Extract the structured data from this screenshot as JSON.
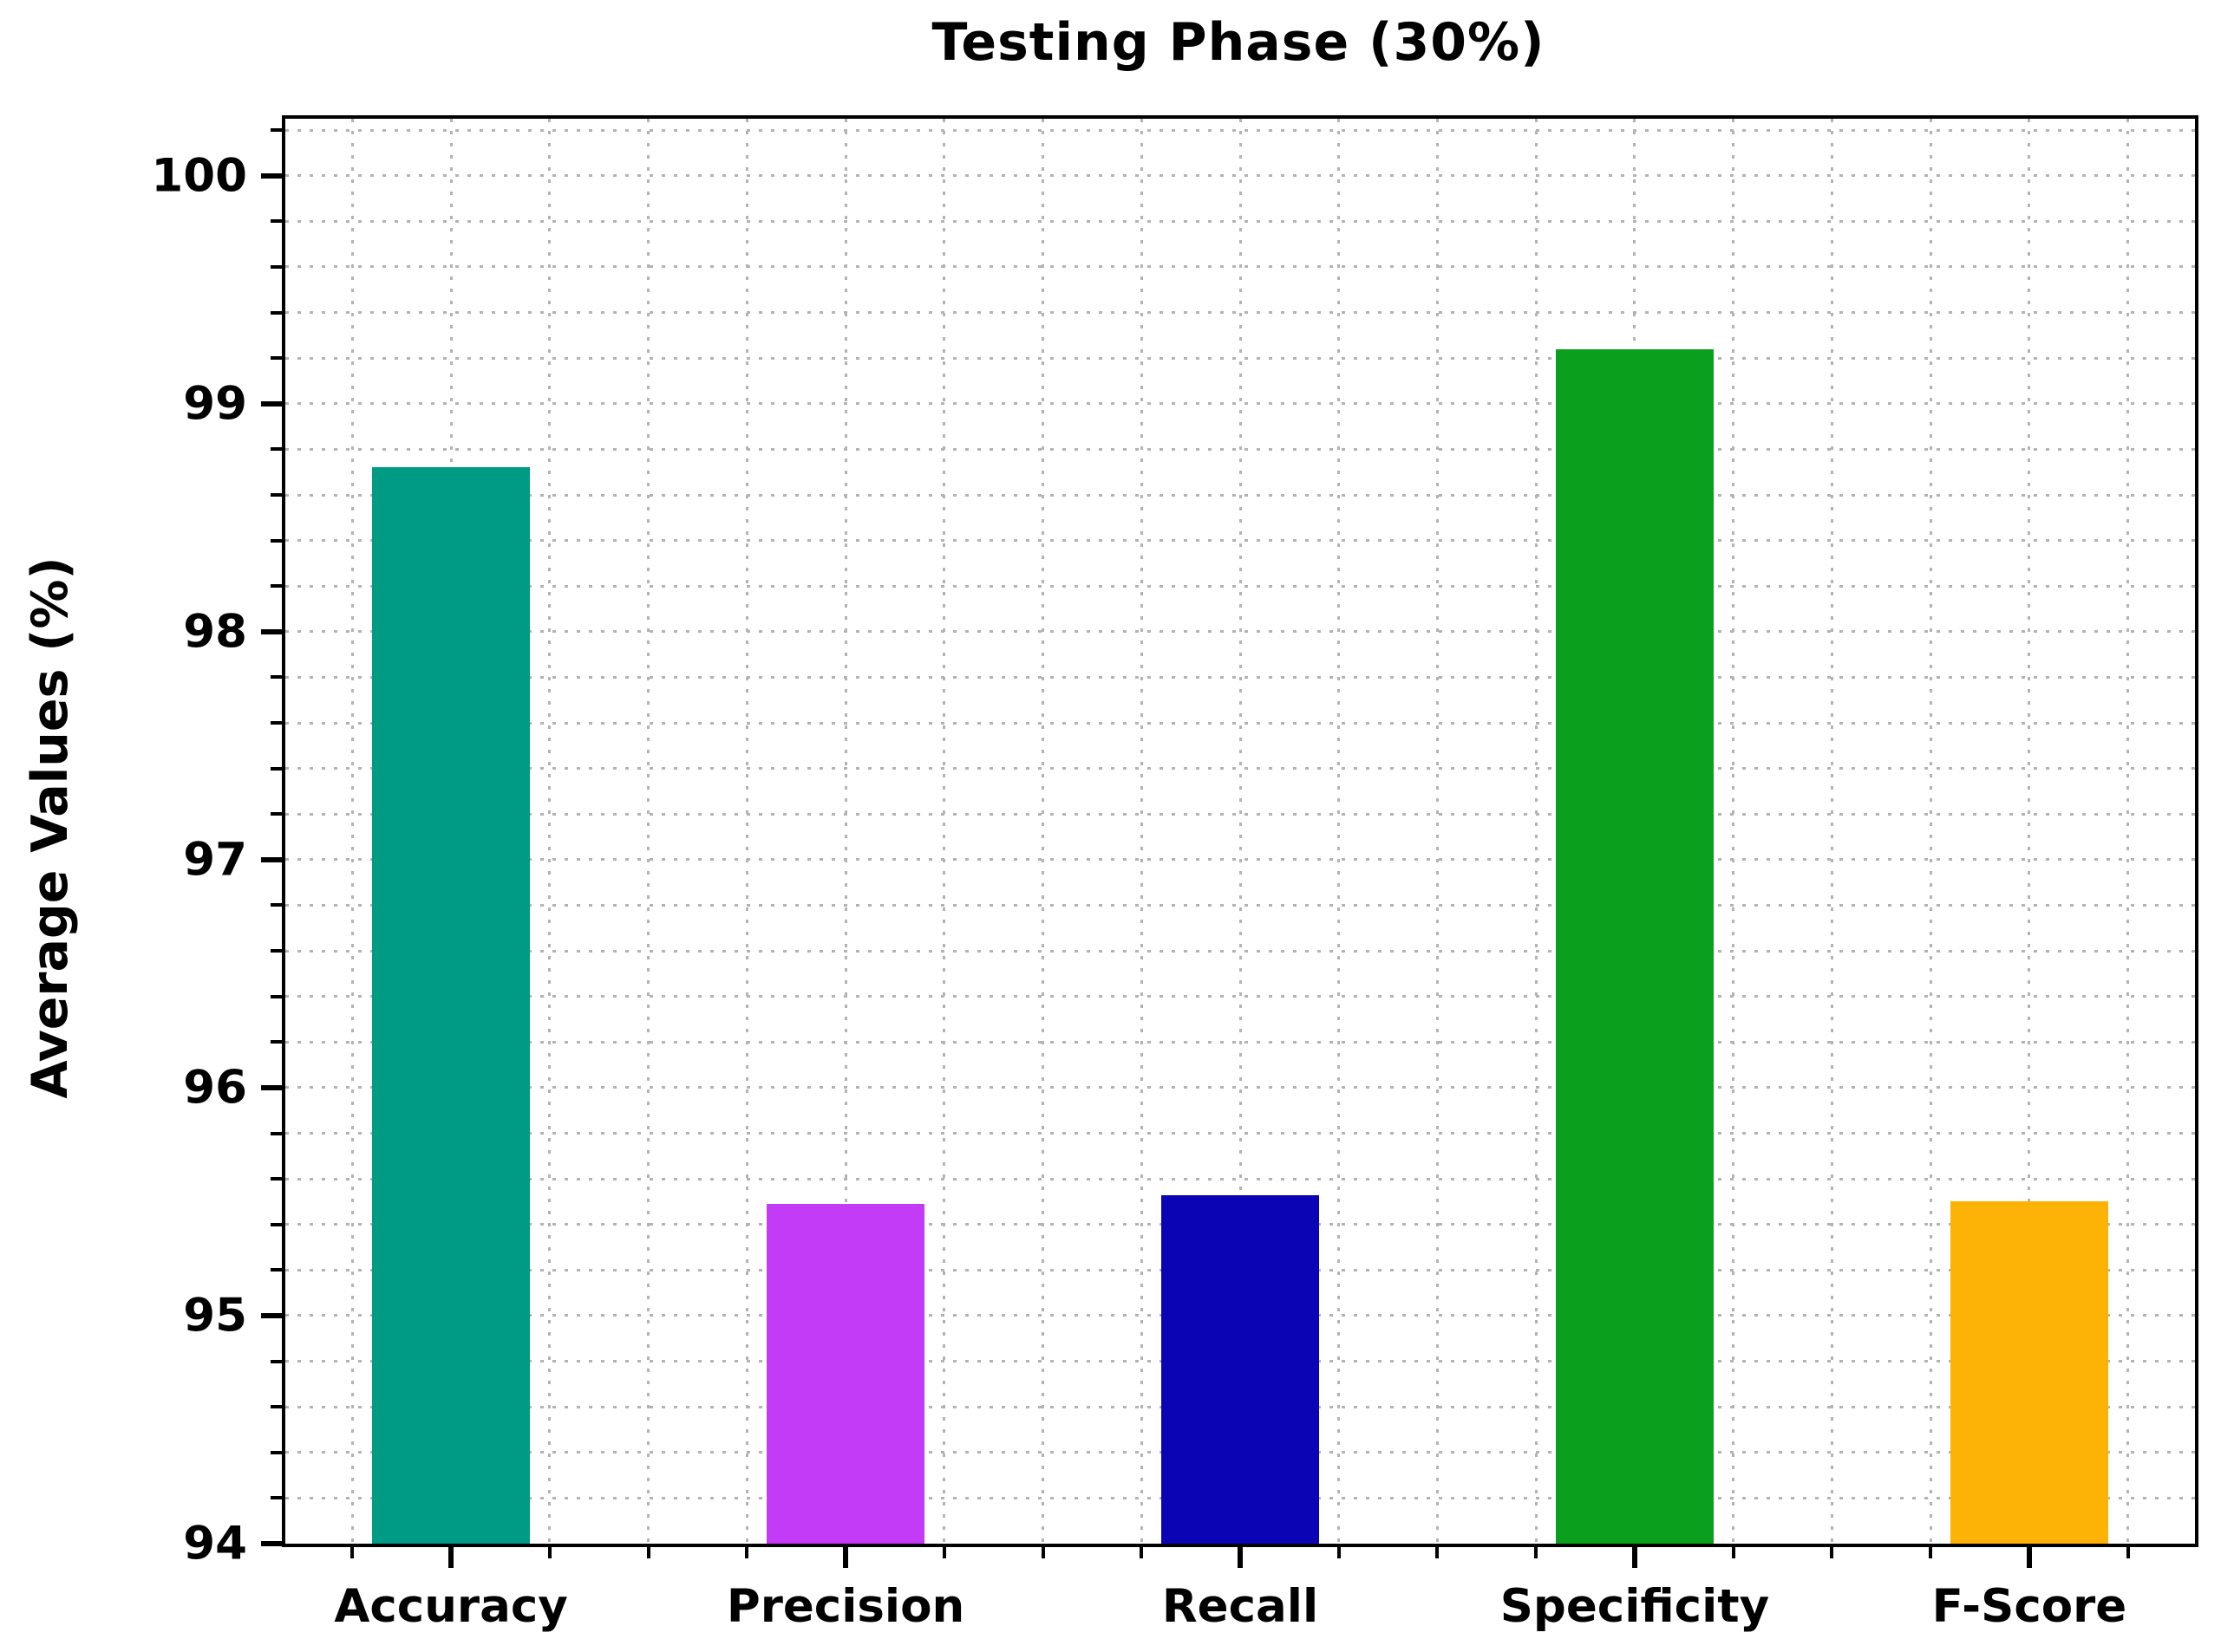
{
  "title": "Testing Phase (30%)",
  "chart_data": {
    "type": "bar",
    "title": "Testing Phase (30%)",
    "xlabel": "",
    "ylabel": "Average Values (%)",
    "categories": [
      "Accuracy",
      "Precision",
      "Recall",
      "Specificity",
      "F-Score"
    ],
    "values": [
      98.72,
      95.49,
      95.53,
      99.24,
      95.5
    ],
    "bar_colors": [
      "#009b84",
      "#c43bf7",
      "#0a04b4",
      "#0aa01e",
      "#fdb306"
    ],
    "yticks": [
      94,
      95,
      96,
      97,
      98,
      99,
      100
    ],
    "ylim": [
      94,
      100.25
    ],
    "y_minor_step": 0.2,
    "x_minor_step": 0.25,
    "x_edge_pad": 0.42,
    "bar_width_units": 0.4,
    "grid": "dotted gray, major and minor, both axes, drawn behind bars",
    "legend_position": "none"
  },
  "colors": {
    "background": "#ffffff",
    "spine": "#000000",
    "grid": "#b3b3b3",
    "text": "#000000"
  }
}
